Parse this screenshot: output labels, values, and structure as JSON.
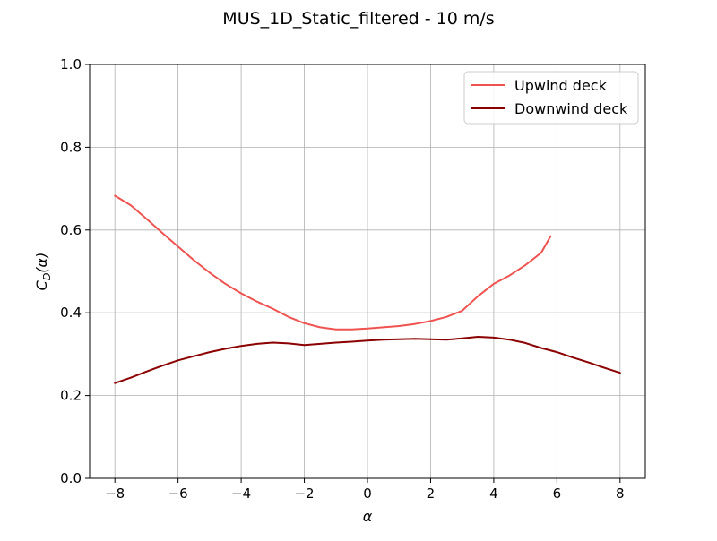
{
  "chart_data": {
    "type": "line",
    "title": "MUS_1D_Static_filtered - 10 m/s",
    "xlabel": "α",
    "ylabel": {
      "main": "C",
      "sub": "D",
      "tail": "(α)"
    },
    "xlim": [
      -8.8,
      8.8
    ],
    "ylim": [
      0.0,
      1.0
    ],
    "xticks": [
      -8,
      -6,
      -4,
      -2,
      0,
      2,
      4,
      6,
      8
    ],
    "xtick_labels": [
      "−8",
      "−6",
      "−4",
      "−2",
      "0",
      "2",
      "4",
      "6",
      "8"
    ],
    "yticks": [
      0.0,
      0.2,
      0.4,
      0.6,
      0.8,
      1.0
    ],
    "ytick_labels": [
      "0.0",
      "0.2",
      "0.4",
      "0.6",
      "0.8",
      "1.0"
    ],
    "grid": true,
    "legend_position": "top-right",
    "series": [
      {
        "name": "Upwind deck",
        "color": "#ef5350",
        "x": [
          -8.0,
          -7.5,
          -7.0,
          -6.5,
          -6.0,
          -5.5,
          -5.0,
          -4.5,
          -4.0,
          -3.5,
          -3.0,
          -2.5,
          -2.0,
          -1.5,
          -1.0,
          -0.5,
          0.0,
          0.5,
          1.0,
          1.5,
          2.0,
          2.5,
          3.0,
          3.5,
          4.0,
          4.5,
          5.0,
          5.5,
          5.8
        ],
        "y": [
          0.683,
          0.66,
          0.627,
          0.593,
          0.56,
          0.527,
          0.497,
          0.47,
          0.447,
          0.427,
          0.41,
          0.39,
          0.375,
          0.365,
          0.36,
          0.36,
          0.362,
          0.365,
          0.368,
          0.373,
          0.38,
          0.39,
          0.405,
          0.44,
          0.47,
          0.49,
          0.515,
          0.545,
          0.585
        ]
      },
      {
        "name": "Downwind deck",
        "color": "#8b0000",
        "x": [
          -8.0,
          -7.5,
          -7.0,
          -6.5,
          -6.0,
          -5.5,
          -5.0,
          -4.5,
          -4.0,
          -3.5,
          -3.0,
          -2.5,
          -2.0,
          -1.5,
          -1.0,
          -0.5,
          0.0,
          0.5,
          1.0,
          1.5,
          2.0,
          2.5,
          3.0,
          3.5,
          4.0,
          4.5,
          5.0,
          5.5,
          6.0,
          6.5,
          7.0,
          7.5,
          8.0
        ],
        "y": [
          0.23,
          0.243,
          0.258,
          0.272,
          0.285,
          0.295,
          0.305,
          0.313,
          0.32,
          0.325,
          0.328,
          0.326,
          0.322,
          0.325,
          0.328,
          0.33,
          0.333,
          0.335,
          0.336,
          0.337,
          0.336,
          0.335,
          0.338,
          0.342,
          0.34,
          0.335,
          0.327,
          0.315,
          0.305,
          0.292,
          0.28,
          0.267,
          0.255
        ]
      }
    ]
  }
}
